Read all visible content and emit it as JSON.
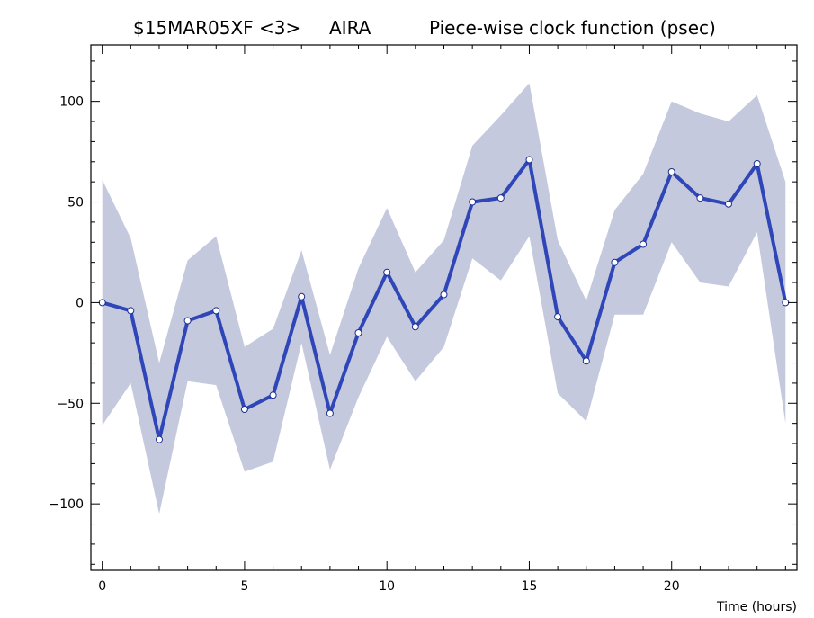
{
  "title": {
    "source": "$15MAR05XF <3>",
    "station": "AIRA",
    "description": "Piece-wise clock function (psec)"
  },
  "colors": {
    "line": "#2f46b8",
    "band": "#c5c9dd",
    "marker_fill": "#ffffff",
    "marker_stroke": "#1d2f8c"
  },
  "chart_data": {
    "type": "line",
    "title": "$15MAR05XF <3>  AIRA       Piece-wise clock function (psec)",
    "xlabel": "Time (hours)",
    "ylabel": "",
    "xlim": [
      -0.4,
      24.4
    ],
    "ylim": [
      -133,
      128
    ],
    "x_ticks": [
      0,
      5,
      10,
      15,
      20
    ],
    "y_ticks": [
      -100,
      -50,
      0,
      50,
      100
    ],
    "grid": false,
    "series": [
      {
        "x": [
          0,
          1,
          2,
          3,
          4,
          5,
          6,
          7,
          8,
          9,
          10,
          11,
          12,
          13,
          14,
          15,
          16,
          17,
          18,
          19,
          20,
          21,
          22,
          23,
          24
        ],
        "values": [
          0,
          -4,
          -68,
          -9,
          -4,
          -53,
          -46,
          3,
          -55,
          -15,
          15,
          -12,
          4,
          50,
          52,
          71,
          -7,
          -29,
          20,
          29,
          65,
          52,
          49,
          69,
          0
        ],
        "upper": [
          61,
          32,
          -30,
          21,
          33,
          -22,
          -13,
          26,
          -26,
          17,
          47,
          15,
          31,
          78,
          93,
          109,
          31,
          1,
          46,
          64,
          100,
          94,
          90,
          103,
          60
        ],
        "lower": [
          -61,
          -40,
          -105,
          -39,
          -41,
          -84,
          -79,
          -20,
          -83,
          -47,
          -17,
          -39,
          -22,
          22,
          11,
          33,
          -45,
          -59,
          -6,
          -6,
          30,
          10,
          8,
          35,
          -60
        ]
      }
    ]
  }
}
